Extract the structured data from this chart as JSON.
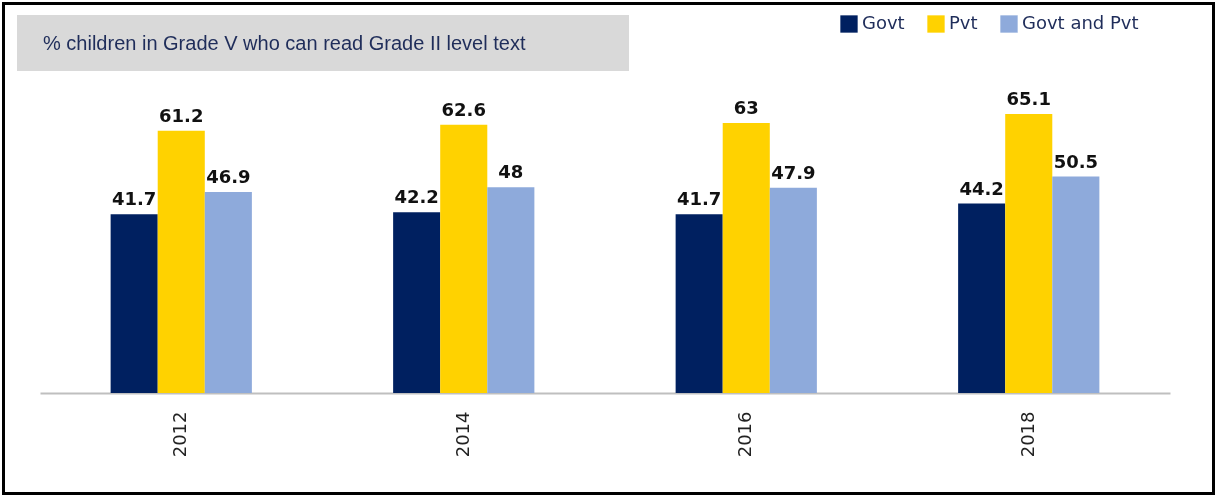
{
  "chart_data": {
    "type": "bar",
    "title": "% children in Grade V who can read Grade II level text",
    "categories": [
      "2012",
      "2014",
      "2016",
      "2018"
    ],
    "series": [
      {
        "name": "Govt",
        "color": "#002060",
        "values": [
          41.7,
          42.2,
          41.7,
          44.2
        ]
      },
      {
        "name": "Pvt",
        "color": "#ffd200",
        "values": [
          61.2,
          62.6,
          63,
          65.1
        ]
      },
      {
        "name": "Govt and Pvt",
        "color": "#8eaadb",
        "values": [
          46.9,
          48,
          47.9,
          50.5
        ]
      }
    ],
    "data_labels": true,
    "grid": false,
    "legend": "top right",
    "tick_labels": "x"
  }
}
